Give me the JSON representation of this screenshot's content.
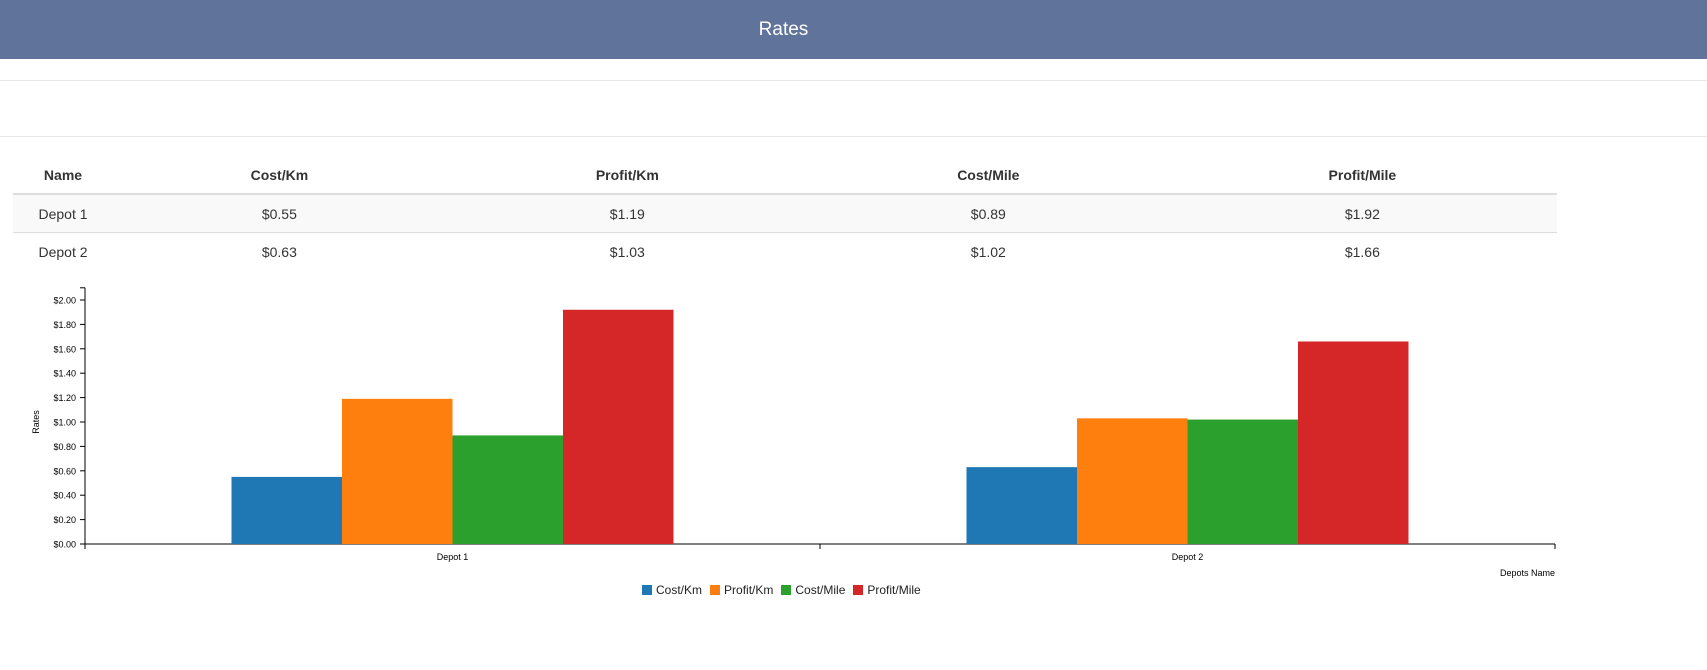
{
  "header": {
    "title": "Rates"
  },
  "table": {
    "columns": [
      "Name",
      "Cost/Km",
      "Profit/Km",
      "Cost/Mile",
      "Profit/Mile"
    ],
    "rows": [
      [
        "Depot 1",
        "$0.55",
        "$1.19",
        "$0.89",
        "$1.92"
      ],
      [
        "Depot 2",
        "$0.63",
        "$1.03",
        "$1.02",
        "$1.66"
      ]
    ]
  },
  "chart_data": {
    "type": "bar",
    "categories": [
      "Depot 1",
      "Depot 2"
    ],
    "series": [
      {
        "name": "Cost/Km",
        "values": [
          0.55,
          0.63
        ],
        "color": "#1f77b4"
      },
      {
        "name": "Profit/Km",
        "values": [
          1.19,
          1.03
        ],
        "color": "#ff7f0e"
      },
      {
        "name": "Cost/Mile",
        "values": [
          0.89,
          1.02
        ],
        "color": "#2ca02c"
      },
      {
        "name": "Profit/Mile",
        "values": [
          1.92,
          1.66
        ],
        "color": "#d62728"
      }
    ],
    "xlabel": "Depots Name",
    "ylabel": "Rates",
    "ylim": [
      0,
      2.1
    ],
    "yticks": [
      "$0.00",
      "$0.20",
      "$0.40",
      "$0.60",
      "$0.80",
      "$1.00",
      "$1.20",
      "$1.40",
      "$1.60",
      "$1.80",
      "$2.00"
    ],
    "grid": false,
    "legend": "bottom"
  }
}
